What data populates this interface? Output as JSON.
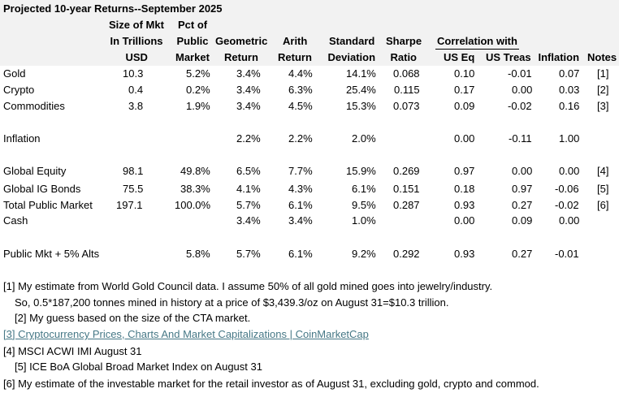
{
  "title": "Projected 10-year Returns--September 2025",
  "columns": [
    {
      "lines": [
        "Size of Mkt",
        "In Trillions",
        "USD"
      ]
    },
    {
      "lines": [
        "Pct of",
        "Public",
        "Market"
      ]
    },
    {
      "lines": [
        "Geometric",
        "Return"
      ]
    },
    {
      "lines": [
        "Arith",
        "Return"
      ]
    },
    {
      "lines": [
        "Standard",
        "Deviation"
      ]
    },
    {
      "lines": [
        "Sharpe",
        "Ratio"
      ]
    },
    {
      "lines": [
        "US Eq"
      ]
    },
    {
      "lines": [
        "US Treas"
      ]
    },
    {
      "lines": [
        "Inflation"
      ]
    },
    {
      "lines": [
        "Notes"
      ]
    }
  ],
  "group_header": "Correlation with",
  "rows": [
    {
      "label": "Gold",
      "cells": [
        "10.3",
        "5.2%",
        "3.4%",
        "4.4%",
        "14.1%",
        "0.068",
        "0.10",
        "-0.01",
        "0.07",
        "[1]"
      ]
    },
    {
      "label": "Crypto",
      "cells": [
        "0.4",
        "0.2%",
        "3.4%",
        "6.3%",
        "25.4%",
        "0.115",
        "0.17",
        "0.00",
        "0.03",
        "[2]"
      ]
    },
    {
      "label": "Commodities",
      "cells": [
        "3.8",
        "1.9%",
        "3.4%",
        "4.5%",
        "15.3%",
        "0.073",
        "0.09",
        "-0.02",
        "0.16",
        "[3]"
      ]
    },
    {
      "label": "Inflation",
      "cells": [
        null,
        null,
        "2.2%",
        "2.2%",
        "2.0%",
        null,
        "0.00",
        "-0.11",
        "1.00",
        null
      ]
    },
    {
      "label": "Global Equity",
      "cells": [
        "98.1",
        "49.8%",
        "6.5%",
        "7.7%",
        "15.9%",
        "0.269",
        "0.97",
        "0.00",
        "0.00",
        "[4]"
      ]
    },
    {
      "label": "Global IG Bonds",
      "cells": [
        "75.5",
        "38.3%",
        "4.1%",
        "4.3%",
        "6.1%",
        "0.151",
        "0.18",
        "0.97",
        "-0.06",
        "[5]"
      ]
    },
    {
      "label": "Total Public Market",
      "cells": [
        "197.1",
        "100.0%",
        "5.7%",
        "6.1%",
        "9.5%",
        "0.287",
        "0.93",
        "0.27",
        "-0.02",
        "[6]"
      ]
    },
    {
      "label": "Cash",
      "cells": [
        null,
        null,
        "3.4%",
        "3.4%",
        "1.0%",
        null,
        "0.00",
        "0.09",
        "0.00",
        null
      ]
    },
    {
      "label": "Public Mkt + 5% Alts",
      "cells": [
        null,
        "5.8%",
        "5.7%",
        "6.1%",
        "9.2%",
        "0.292",
        "0.93",
        "0.27",
        "-0.01",
        null
      ]
    }
  ],
  "notes": [
    "[1] My estimate from World Gold Council data. I assume 50% of all gold mined goes into jewelry/industry.",
    "So, 0.5*187,200 tonnes mined in history at a price of $3,439.3/oz on August 31=$10.3 trillion.",
    "[2] My guess based on the size of the CTA market.",
    "[3] Cryptocurrency Prices, Charts And Market Capitalizations | CoinMarketCap",
    "[4] MSCI ACWI IMI August 31",
    "[5] ICE BoA Global Broad Market Index on August 31",
    "[6] My estimate of the investable market for the retail investor as of August 31, excluding gold, crypto and commod."
  ]
}
